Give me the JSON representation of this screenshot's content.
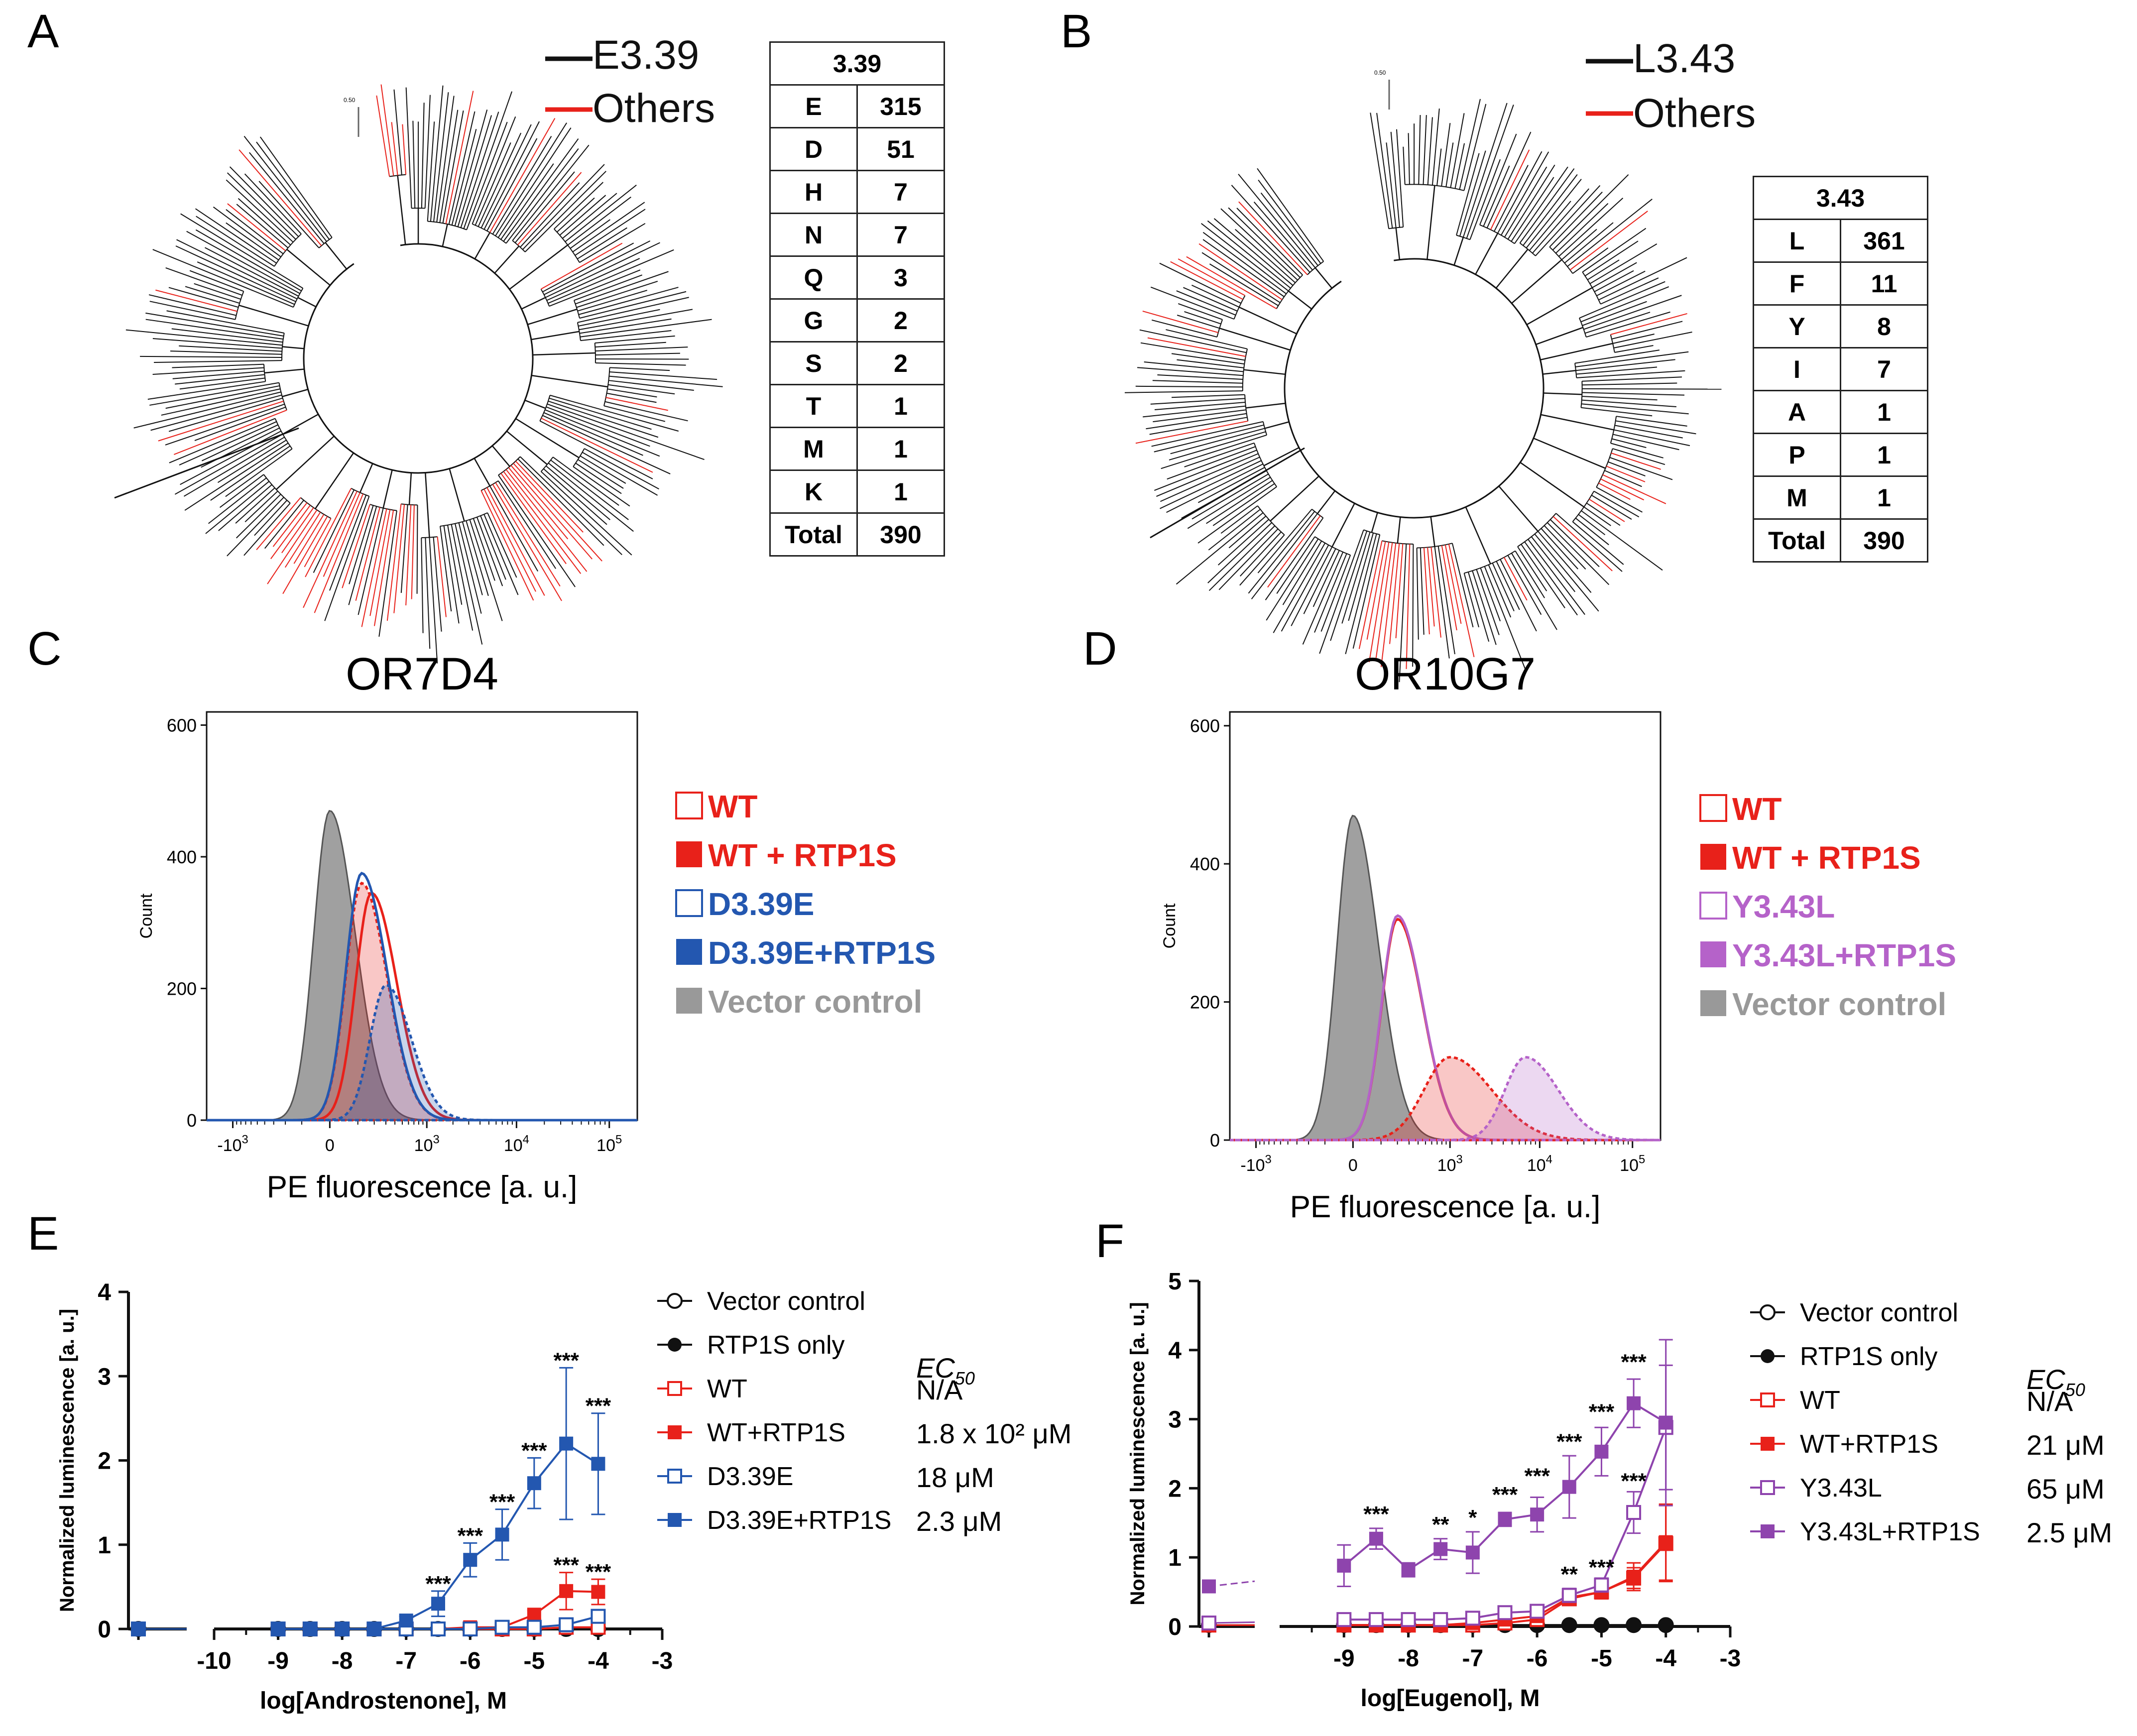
{
  "colors": {
    "black": "#111111",
    "red": "#e8211a",
    "blue": "#2357b0",
    "purple": "#8e44ad",
    "purple_light": "#b562c9",
    "gray": "#999999"
  },
  "panels": {
    "A": {
      "letter": "A",
      "legend": [
        {
          "label": "E3.39",
          "color": "#111111"
        },
        {
          "label": "Others",
          "color": "#e8211a"
        }
      ],
      "scale_label": "0.50",
      "table": {
        "header": "3.39",
        "rows": [
          [
            "E",
            "315"
          ],
          [
            "D",
            "51"
          ],
          [
            "H",
            "7"
          ],
          [
            "N",
            "7"
          ],
          [
            "Q",
            "3"
          ],
          [
            "G",
            "2"
          ],
          [
            "S",
            "2"
          ],
          [
            "T",
            "1"
          ],
          [
            "M",
            "1"
          ],
          [
            "K",
            "1"
          ],
          [
            "Total",
            "390"
          ]
        ]
      }
    },
    "B": {
      "letter": "B",
      "legend": [
        {
          "label": "L3.43",
          "color": "#111111"
        },
        {
          "label": "Others",
          "color": "#e8211a"
        }
      ],
      "scale_label": "0.50",
      "table": {
        "header": "3.43",
        "rows": [
          [
            "L",
            "361"
          ],
          [
            "F",
            "11"
          ],
          [
            "Y",
            "8"
          ],
          [
            "I",
            "7"
          ],
          [
            "A",
            "1"
          ],
          [
            "P",
            "1"
          ],
          [
            "M",
            "1"
          ],
          [
            "Total",
            "390"
          ]
        ]
      }
    },
    "C": {
      "letter": "C"
    },
    "D": {
      "letter": "D"
    },
    "E": {
      "letter": "E"
    },
    "F": {
      "letter": "F"
    }
  },
  "chart_data": [
    {
      "id": "C",
      "type": "histogram",
      "title": "OR7D4",
      "xlabel": "PE fluorescence [a. u.]",
      "ylabel": "Count",
      "xscale": "biexponential",
      "xticks": [
        "-10^3",
        "0",
        "10^3",
        "10^4",
        "10^5"
      ],
      "yticks": [
        0,
        200,
        400,
        600
      ],
      "ylim": [
        0,
        620
      ],
      "legend": [
        {
          "label": "WT",
          "color": "#e8211a",
          "style": "open"
        },
        {
          "label": "WT + RTP1S",
          "color": "#e8211a",
          "style": "filled"
        },
        {
          "label": "D3.39E",
          "color": "#2357b0",
          "style": "open"
        },
        {
          "label": "D3.39E+RTP1S",
          "color": "#2357b0",
          "style": "filled"
        },
        {
          "label": "Vector control",
          "color": "#999999",
          "style": "filled"
        }
      ],
      "series": [
        {
          "name": "Vector control",
          "peak_x": 0,
          "peak_count": 470
        },
        {
          "name": "WT",
          "peak_x": 180,
          "peak_count": 345
        },
        {
          "name": "WT + RTP1S",
          "peak_x": 120,
          "peak_count": 360
        },
        {
          "name": "D3.39E",
          "peak_x": 120,
          "peak_count": 375
        },
        {
          "name": "D3.39E+RTP1S",
          "peak_x": 300,
          "peak_count": 205
        }
      ]
    },
    {
      "id": "D",
      "type": "histogram",
      "title": "OR10G7",
      "xlabel": "PE fluorescence [a. u.]",
      "ylabel": "Count",
      "xscale": "biexponential",
      "xticks": [
        "-10^3",
        "0",
        "10^3",
        "10^4",
        "10^5"
      ],
      "yticks": [
        0,
        200,
        400,
        600
      ],
      "ylim": [
        0,
        620
      ],
      "legend": [
        {
          "label": "WT",
          "color": "#e8211a",
          "style": "open"
        },
        {
          "label": "WT + RTP1S",
          "color": "#e8211a",
          "style": "filled"
        },
        {
          "label": "Y3.43L",
          "color": "#b562c9",
          "style": "open"
        },
        {
          "label": "Y3.43L+RTP1S",
          "color": "#b562c9",
          "style": "filled"
        },
        {
          "label": "Vector control",
          "color": "#999999",
          "style": "filled"
        }
      ],
      "series": [
        {
          "name": "Vector control",
          "peak_x": 0,
          "peak_count": 470
        },
        {
          "name": "WT",
          "peak_x": 200,
          "peak_count": 320
        },
        {
          "name": "Y3.43L",
          "peak_x": 200,
          "peak_count": 325
        },
        {
          "name": "WT + RTP1S",
          "peak_x": 1000,
          "peak_count": 120
        },
        {
          "name": "Y3.43L+RTP1S",
          "peak_x": 7000,
          "peak_count": 120
        }
      ]
    },
    {
      "id": "E",
      "type": "line",
      "xlabel": "log[Androstenone], M",
      "ylabel": "Normalized luminescence [a. u.]",
      "xlim": [
        -10,
        -3
      ],
      "ylim": [
        0,
        4
      ],
      "xticks": [
        -10,
        -9,
        -8,
        -7,
        -6,
        -5,
        -4,
        -3
      ],
      "yticks": [
        0,
        1,
        2,
        3,
        4
      ],
      "x_broken_point": -11,
      "x": [
        -9,
        -8.5,
        -8,
        -7.5,
        -7,
        -6.5,
        -6,
        -5.5,
        -5,
        -4.5,
        -4
      ],
      "ec50_header": "EC50",
      "series": [
        {
          "name": "Vector control",
          "marker": "open-circle",
          "color": "#111111",
          "ec50": "",
          "baseline": 0,
          "values": [
            0,
            0,
            0,
            0,
            0,
            0,
            0,
            0,
            0,
            0,
            0
          ],
          "errors": [
            0,
            0,
            0,
            0,
            0,
            0,
            0,
            0,
            0,
            0,
            0
          ]
        },
        {
          "name": "RTP1S only",
          "marker": "filled-circle",
          "color": "#111111",
          "ec50": "",
          "baseline": 0,
          "values": [
            0,
            0,
            0,
            0,
            0,
            0,
            0,
            0,
            0,
            0,
            0
          ],
          "errors": [
            0,
            0,
            0,
            0,
            0,
            0,
            0,
            0,
            0,
            0,
            0
          ]
        },
        {
          "name": "WT",
          "marker": "open-square",
          "color": "#e8211a",
          "ec50": "N/A",
          "baseline": 0,
          "values": [
            0,
            0,
            0,
            0,
            0,
            0,
            0,
            0,
            0,
            0.02,
            0.02
          ],
          "errors": [
            0,
            0,
            0,
            0,
            0,
            0,
            0,
            0,
            0,
            0.03,
            0.03
          ]
        },
        {
          "name": "WT+RTP1S",
          "marker": "filled-square",
          "color": "#e8211a",
          "ec50": "1.8 x 10² μM",
          "baseline": 0,
          "values": [
            0,
            0,
            0,
            0,
            0,
            0,
            0.02,
            0.02,
            0.17,
            0.45,
            0.44
          ],
          "errors": [
            0,
            0,
            0,
            0,
            0,
            0,
            0.02,
            0.02,
            0.05,
            0.22,
            0.15
          ]
        },
        {
          "name": "D3.39E",
          "marker": "open-square",
          "color": "#2357b0",
          "ec50": "18 μM",
          "baseline": 0,
          "values": [
            0,
            0,
            0,
            0,
            0,
            0,
            0,
            0.02,
            0.02,
            0.05,
            0.15
          ],
          "errors": [
            0,
            0,
            0,
            0,
            0,
            0,
            0,
            0.02,
            0.02,
            0.04,
            0.05
          ]
        },
        {
          "name": "D3.39E+RTP1S",
          "marker": "filled-square",
          "color": "#2357b0",
          "ec50": "2.3 μM",
          "baseline": 0,
          "values": [
            0,
            0,
            0,
            0,
            0.1,
            0.3,
            0.82,
            1.12,
            1.73,
            2.2,
            1.96
          ],
          "errors": [
            0,
            0,
            0,
            0,
            0.05,
            0.15,
            0.2,
            0.3,
            0.3,
            0.9,
            0.6
          ]
        }
      ],
      "annotations": [
        {
          "x": -6.5,
          "y": 0.45,
          "text": "***"
        },
        {
          "x": -6,
          "y": 1.02,
          "text": "***"
        },
        {
          "x": -5.5,
          "y": 1.42,
          "text": "***"
        },
        {
          "x": -5,
          "y": 2.03,
          "text": "***"
        },
        {
          "x": -4.5,
          "y": 3.1,
          "text": "***"
        },
        {
          "x": -4,
          "y": 2.56,
          "text": "***"
        },
        {
          "x": -4.5,
          "y": 0.67,
          "text": "***"
        },
        {
          "x": -4,
          "y": 0.59,
          "text": "***"
        }
      ]
    },
    {
      "id": "F",
      "type": "line",
      "xlabel": "log[Eugenol], M",
      "ylabel": "Normalized luminescence [a. u.]",
      "xlim": [
        -10,
        -3
      ],
      "ylim": [
        0,
        5
      ],
      "xticks": [
        -9,
        -8,
        -7,
        -6,
        -5,
        -4,
        -3
      ],
      "yticks": [
        0,
        1,
        2,
        3,
        4,
        5
      ],
      "x_broken_point": -11,
      "x": [
        -9,
        -8.5,
        -8,
        -7.5,
        -7,
        -6.5,
        -6,
        -5.5,
        -5,
        -4.5,
        -4
      ],
      "ec50_header": "EC50",
      "series": [
        {
          "name": "Vector control",
          "marker": "open-circle",
          "color": "#111111",
          "ec50": "",
          "baseline": 0.02,
          "values": [
            0.02,
            0.02,
            0.02,
            0.02,
            0.02,
            0.02,
            0.02,
            0.02,
            0.02,
            0.02,
            0.02
          ],
          "errors": [
            0,
            0,
            0,
            0,
            0,
            0,
            0,
            0,
            0,
            0,
            0
          ]
        },
        {
          "name": "RTP1S only",
          "marker": "filled-circle",
          "color": "#111111",
          "ec50": "",
          "baseline": 0.02,
          "values": [
            0.02,
            0.02,
            0.02,
            0.02,
            0.02,
            0.02,
            0.02,
            0.02,
            0.02,
            0.02,
            0.02
          ],
          "errors": [
            0,
            0,
            0,
            0,
            0,
            0,
            0,
            0,
            0,
            0,
            0
          ]
        },
        {
          "name": "WT",
          "marker": "open-square",
          "color": "#e8211a",
          "ec50": "N/A",
          "baseline": 0.02,
          "values": [
            0.02,
            0.02,
            0.02,
            0.02,
            0.02,
            0.05,
            0.1,
            0.4,
            0.5,
            0.7,
            1.2
          ],
          "errors": [
            0,
            0,
            0,
            0,
            0,
            0.03,
            0.05,
            0.08,
            0.1,
            0.15,
            0.55
          ]
        },
        {
          "name": "WT+RTP1S",
          "marker": "filled-square",
          "color": "#e8211a",
          "ec50": "21 μM",
          "baseline": 0.02,
          "values": [
            0.02,
            0.02,
            0.02,
            0.02,
            0.05,
            0.1,
            0.15,
            0.42,
            0.5,
            0.72,
            1.22
          ],
          "errors": [
            0,
            0,
            0,
            0,
            0.03,
            0.05,
            0.05,
            0.1,
            0.1,
            0.2,
            0.55
          ]
        },
        {
          "name": "Y3.43L",
          "marker": "open-square",
          "color": "#8e44ad",
          "ec50": "65 μM",
          "baseline": 0.05,
          "values": [
            0.1,
            0.1,
            0.1,
            0.1,
            0.12,
            0.2,
            0.22,
            0.45,
            0.6,
            1.65,
            2.88
          ],
          "errors": [
            0.03,
            0.03,
            0.03,
            0.03,
            0.03,
            0.05,
            0.05,
            0.1,
            0.1,
            0.3,
            0.9
          ]
        },
        {
          "name": "Y3.43L+RTP1S",
          "marker": "filled-square",
          "color": "#8e44ad",
          "ec50": "2.5 μM",
          "baseline": 0.58,
          "values": [
            0.88,
            1.27,
            0.82,
            1.12,
            1.07,
            1.55,
            1.62,
            2.02,
            2.53,
            3.23,
            2.95
          ],
          "errors": [
            0.3,
            0.15,
            0.1,
            0.15,
            0.3,
            0.1,
            0.25,
            0.45,
            0.35,
            0.35,
            1.2
          ]
        }
      ],
      "annotations": [
        {
          "x": -8.5,
          "y": 1.52,
          "text": "***"
        },
        {
          "x": -7.5,
          "y": 1.37,
          "text": "**"
        },
        {
          "x": -7,
          "y": 1.47,
          "text": "*"
        },
        {
          "x": -6.5,
          "y": 1.8,
          "text": "***"
        },
        {
          "x": -6,
          "y": 2.07,
          "text": "***"
        },
        {
          "x": -5.5,
          "y": 2.57,
          "text": "***"
        },
        {
          "x": -5,
          "y": 3.0,
          "text": "***"
        },
        {
          "x": -4.5,
          "y": 3.72,
          "text": "***"
        },
        {
          "x": -4.5,
          "y": 2.0,
          "text": "***"
        },
        {
          "x": -5.5,
          "y": 0.65,
          "text": "**"
        },
        {
          "x": -5,
          "y": 0.75,
          "text": "***"
        }
      ]
    }
  ]
}
